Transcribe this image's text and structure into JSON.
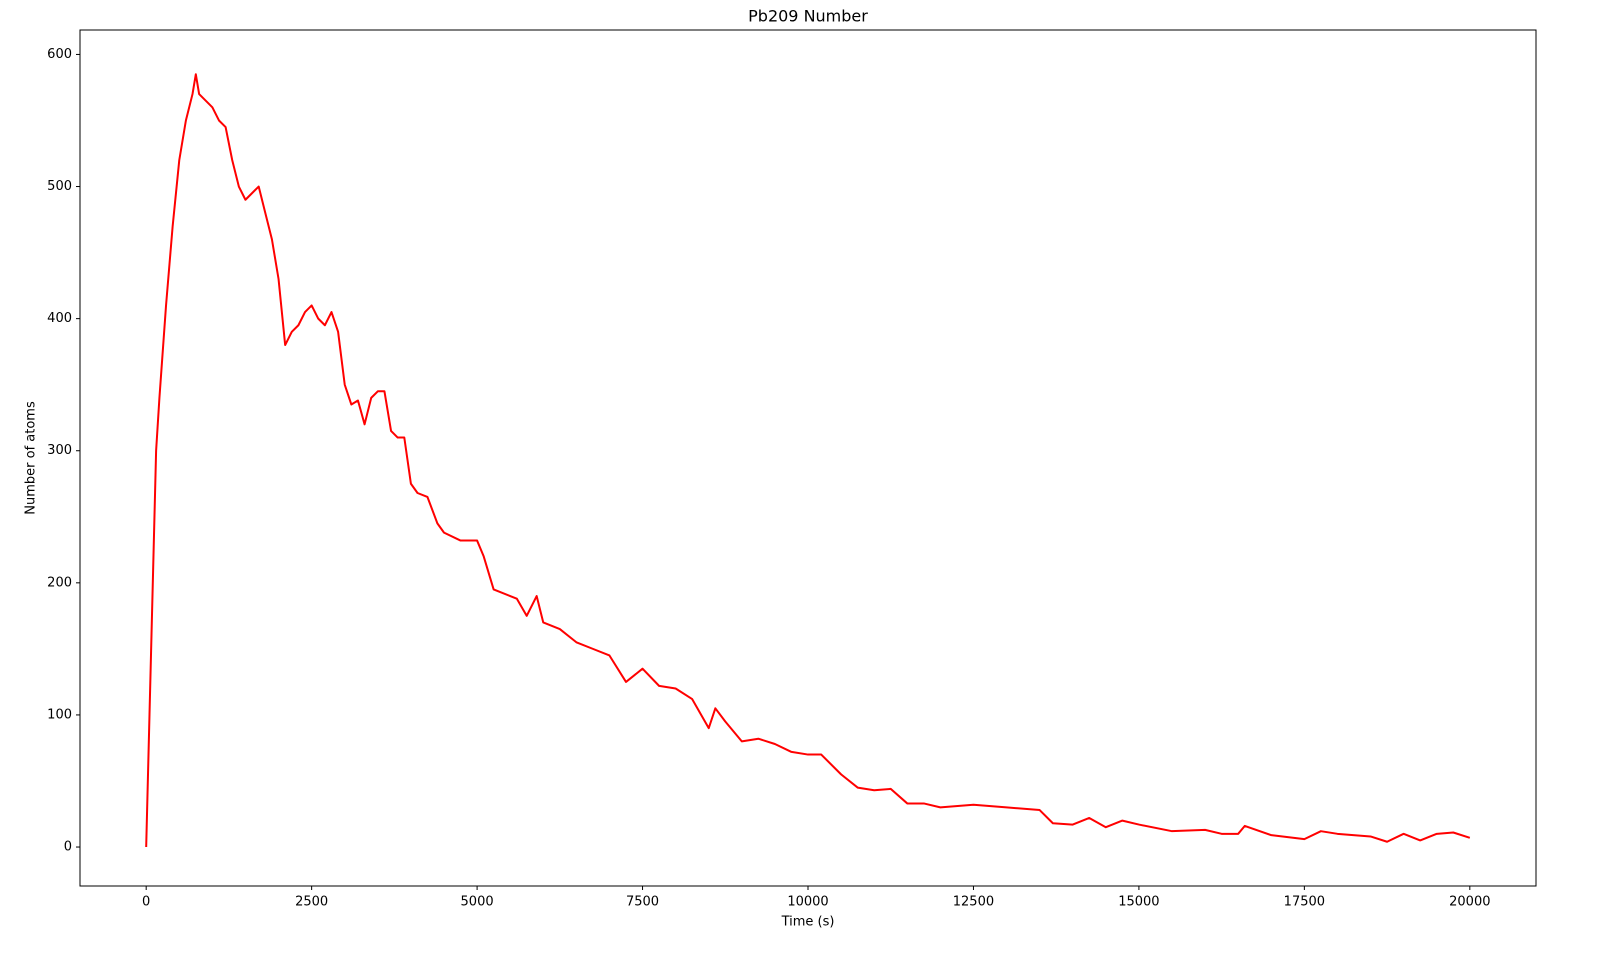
{
  "chart_data": {
    "type": "line",
    "title": "Pb209 Number",
    "xlabel": "Time (s)",
    "ylabel": "Number of atoms",
    "x": [
      0,
      50,
      100,
      150,
      200,
      300,
      400,
      500,
      600,
      700,
      750,
      800,
      900,
      1000,
      1100,
      1200,
      1300,
      1400,
      1500,
      1600,
      1700,
      1800,
      1900,
      2000,
      2100,
      2200,
      2300,
      2400,
      2500,
      2600,
      2700,
      2800,
      2900,
      3000,
      3100,
      3200,
      3300,
      3400,
      3500,
      3600,
      3700,
      3800,
      3900,
      4000,
      4100,
      4250,
      4400,
      4500,
      4750,
      5000,
      5100,
      5250,
      5500,
      5600,
      5750,
      5900,
      6000,
      6250,
      6500,
      6750,
      7000,
      7250,
      7500,
      7750,
      8000,
      8250,
      8500,
      8600,
      8750,
      9000,
      9250,
      9500,
      9750,
      10000,
      10200,
      10500,
      10750,
      11000,
      11250,
      11500,
      11750,
      12000,
      12500,
      13000,
      13500,
      13700,
      14000,
      14250,
      14500,
      14750,
      15000,
      15500,
      16000,
      16250,
      16500,
      16600,
      17000,
      17500,
      17750,
      18000,
      18500,
      18750,
      19000,
      19250,
      19500,
      19750,
      20000
    ],
    "series": [
      {
        "name": "Pb209",
        "color": "#ff0000",
        "values": [
          0,
          100,
          200,
          300,
          340,
          410,
          470,
          520,
          550,
          570,
          585,
          570,
          565,
          560,
          550,
          545,
          520,
          500,
          490,
          495,
          500,
          480,
          460,
          430,
          380,
          390,
          395,
          405,
          410,
          400,
          395,
          405,
          390,
          350,
          335,
          338,
          320,
          340,
          345,
          345,
          315,
          310,
          310,
          275,
          268,
          265,
          245,
          238,
          232,
          232,
          220,
          195,
          190,
          188,
          175,
          190,
          170,
          165,
          155,
          150,
          145,
          125,
          135,
          122,
          120,
          112,
          90,
          105,
          95,
          80,
          82,
          78,
          72,
          70,
          70,
          55,
          45,
          43,
          44,
          33,
          33,
          30,
          32,
          30,
          28,
          18,
          17,
          22,
          15,
          20,
          17,
          12,
          13,
          10,
          10,
          16,
          9,
          6,
          12,
          10,
          8,
          4,
          10,
          5,
          10,
          11,
          7
        ]
      }
    ],
    "xlim": [
      -1000,
      21000
    ],
    "ylim": [
      -29.5,
      618.5
    ],
    "xticks": [
      0,
      2500,
      5000,
      7500,
      10000,
      12500,
      15000,
      17500,
      20000
    ],
    "yticks": [
      0,
      100,
      200,
      300,
      400,
      500,
      600
    ]
  }
}
